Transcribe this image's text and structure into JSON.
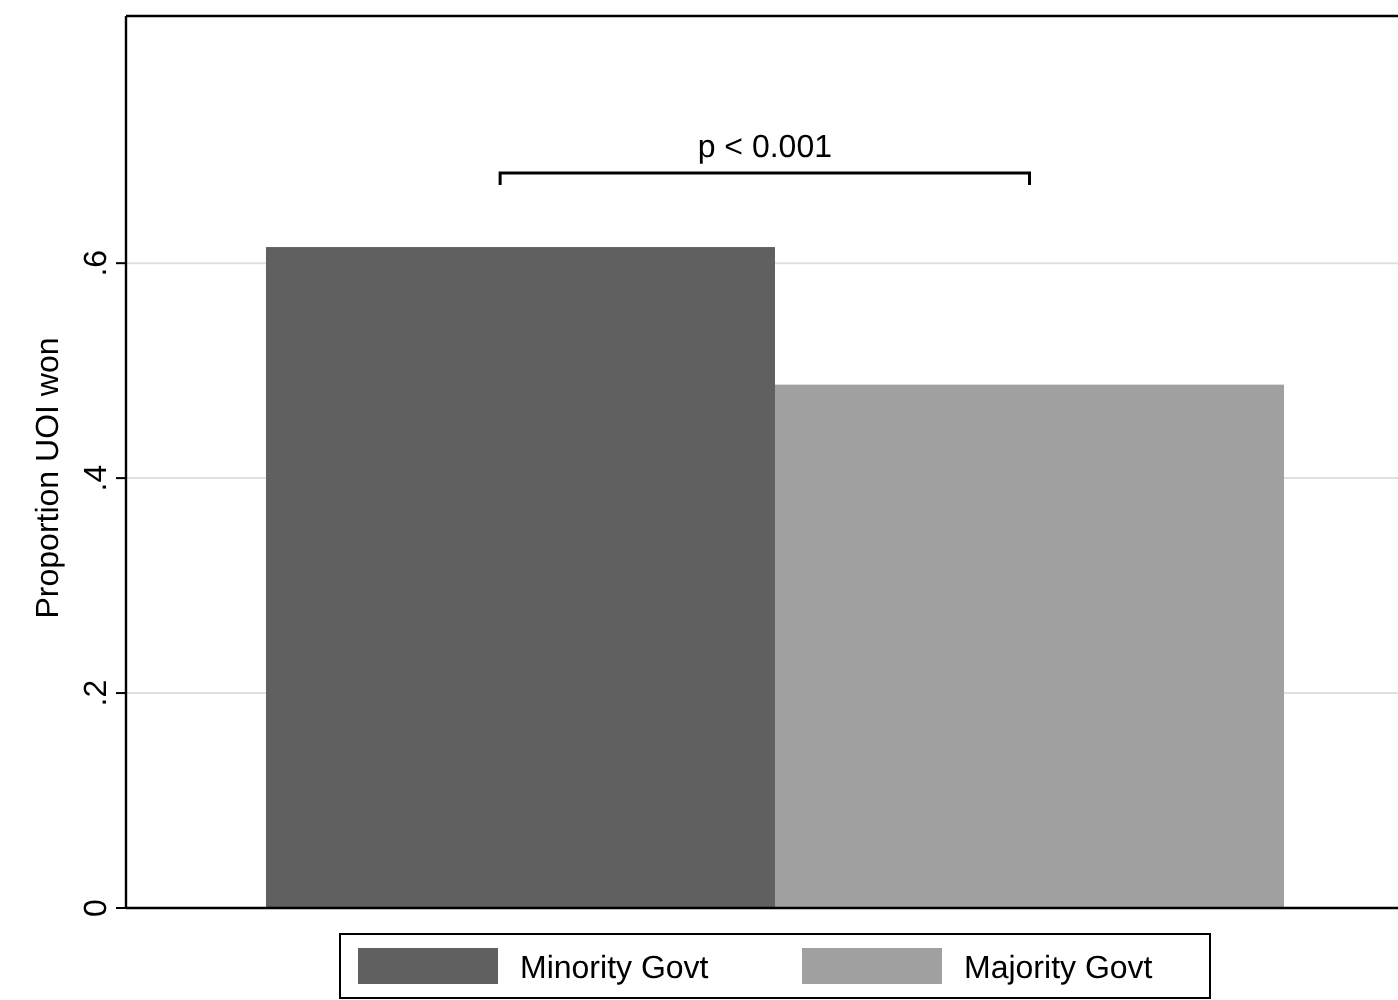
{
  "chart_data": {
    "type": "bar",
    "ylabel": "Proportion UOI won",
    "categories": [
      null
    ],
    "series": [
      {
        "name": "Minority Govt",
        "color": "#606060",
        "values": [
          0.615
        ]
      },
      {
        "name": "Majority Govt",
        "color": "#a0a0a0",
        "values": [
          0.487
        ]
      }
    ],
    "ylim": [
      0,
      0.83
    ],
    "yticks": [
      {
        "value": 0,
        "label": "0"
      },
      {
        "value": 0.2,
        "label": ".2"
      },
      {
        "value": 0.4,
        "label": ".4"
      },
      {
        "value": 0.6,
        "label": ".6"
      }
    ],
    "grid": "y",
    "legend": "bottom",
    "annotations": [
      "p < 0.001"
    ]
  }
}
